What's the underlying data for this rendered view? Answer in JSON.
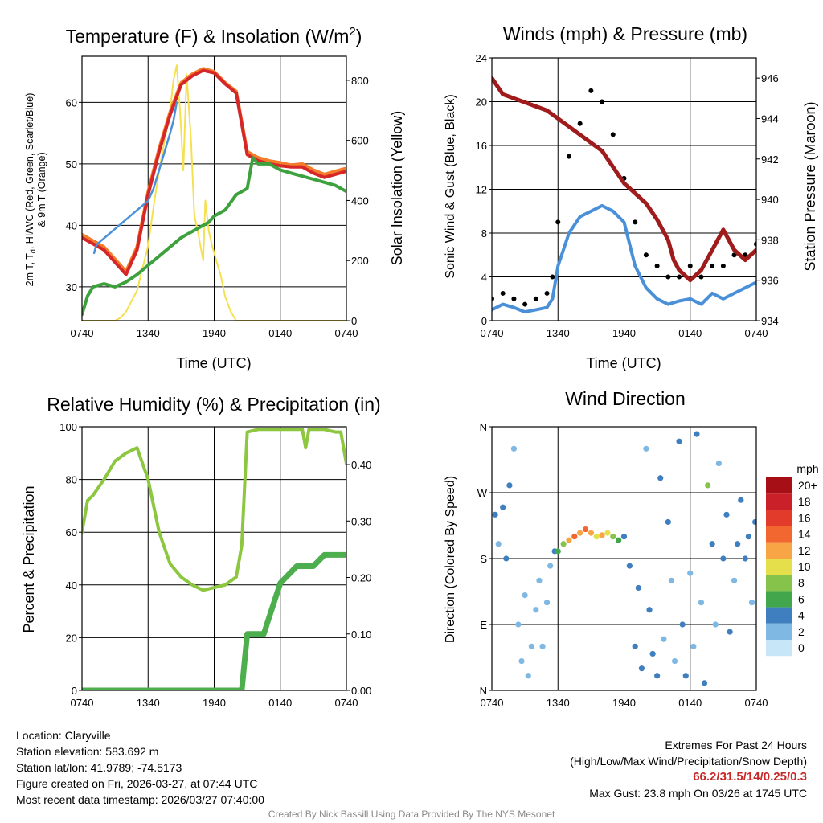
{
  "chart_data": [
    {
      "type": "line",
      "title": "Temperature (F) & Insolation (W/m²)",
      "xlabel": "Time (UTC)",
      "ylabel": "2m T, Td, HI/WC (Red, Green, Scarlet/Blue) & 9m T (Orange)",
      "ylabel_line1": "2m T, T",
      "ylabel_sub": "d",
      "ylabel_line1b": ", HI/WC (Red, Green, Scarlet/Blue)",
      "ylabel_line2": "& 9m T (Orange)",
      "y2label": "Solar Insolation (Yellow)",
      "x_ticks": [
        "0740",
        "1340",
        "1940",
        "0140",
        "0740"
      ],
      "x_hours": [
        0,
        24
      ],
      "ylim": [
        24.5,
        67.5
      ],
      "y_ticks": [
        30,
        40,
        50,
        60
      ],
      "y2lim": [
        0,
        880
      ],
      "y2_ticks": [
        0,
        200,
        400,
        600,
        800
      ],
      "series": [
        {
          "name": "9m T",
          "color": "#f47c2a",
          "x": [
            0,
            1,
            2,
            3,
            4,
            5,
            6,
            7,
            8,
            9,
            10,
            11,
            12,
            13,
            14,
            15,
            16,
            17,
            18,
            19,
            20,
            21,
            22,
            23,
            24
          ],
          "values": [
            38.5,
            37.5,
            36.5,
            34.5,
            32.5,
            36.5,
            45.5,
            52.5,
            58.5,
            63.2,
            64.6,
            65.5,
            65.0,
            63.2,
            61.8,
            52.0,
            51.0,
            50.5,
            50.2,
            49.8,
            50.0,
            49.0,
            48.3,
            48.8,
            49.3
          ]
        },
        {
          "name": "2m T",
          "color": "#d62728",
          "x": [
            0,
            1,
            2,
            3,
            4,
            5,
            6,
            7,
            8,
            9,
            10,
            11,
            12,
            13,
            14,
            15,
            16,
            17,
            18,
            19,
            20,
            21,
            22,
            23,
            24
          ],
          "values": [
            38.0,
            37.0,
            36.0,
            34.0,
            32.0,
            36.0,
            45.0,
            52.0,
            58.0,
            62.9,
            64.3,
            65.2,
            64.8,
            63.0,
            61.5,
            51.5,
            50.5,
            50.0,
            49.7,
            49.5,
            49.5,
            48.5,
            47.8,
            48.3,
            48.8
          ]
        },
        {
          "name": "HI/WC",
          "color": "#4a90d9",
          "x": [
            1.1,
            1.25,
            1.4,
            6,
            6.5,
            7,
            7.5,
            8,
            8.3,
            8.6
          ],
          "values": [
            35.5,
            36.5,
            37,
            44,
            46,
            49,
            52,
            55,
            57,
            60
          ]
        },
        {
          "name": "Td",
          "color": "#3da13d",
          "x": [
            0,
            0.5,
            1,
            2,
            3,
            4,
            5,
            6,
            7,
            8,
            9,
            9.5,
            10,
            11,
            11.5,
            12,
            13,
            14,
            15,
            15.5,
            16,
            17,
            18,
            19,
            20,
            21,
            22,
            23,
            24
          ],
          "values": [
            25.5,
            28.5,
            30.0,
            30.5,
            30.0,
            30.8,
            32.0,
            33.5,
            35.0,
            36.5,
            38.0,
            38.5,
            39.0,
            40.0,
            40.5,
            41.5,
            42.5,
            45.0,
            46.0,
            51.0,
            50.0,
            50.0,
            49.0,
            48.5,
            48.0,
            47.5,
            47.0,
            46.5,
            45.5
          ]
        },
        {
          "name": "Solar Insolation",
          "axis": "y2",
          "color": "#f5e050",
          "x": [
            0,
            3,
            3.5,
            4,
            5,
            6,
            6.5,
            7,
            8,
            8.3,
            8.6,
            8.9,
            9.2,
            9.5,
            9.9,
            10.2,
            10.5,
            11,
            11.2,
            11.5,
            11.8,
            12.2,
            12.6,
            13,
            13.5,
            14,
            24
          ],
          "values": [
            0,
            0,
            10,
            30,
            100,
            250,
            380,
            500,
            700,
            800,
            850,
            700,
            500,
            820,
            600,
            350,
            300,
            200,
            400,
            300,
            250,
            200,
            150,
            80,
            30,
            0,
            0
          ]
        }
      ]
    },
    {
      "type": "line",
      "title": "Winds (mph) & Pressure (mb)",
      "xlabel": "Time (UTC)",
      "ylabel": "Sonic Wind & Gust (Blue, Black)",
      "y2label": "Station Pressure (Maroon)",
      "x_ticks": [
        "0740",
        "1340",
        "1940",
        "0140",
        "0740"
      ],
      "x_hours": [
        0,
        24
      ],
      "ylim": [
        0,
        24
      ],
      "y_ticks": [
        0,
        4,
        8,
        12,
        16,
        20,
        24
      ],
      "y2lim": [
        934,
        947
      ],
      "y2_ticks": [
        934,
        936,
        938,
        940,
        942,
        944,
        946
      ],
      "series": [
        {
          "name": "Sonic Wind",
          "color": "#4a90d9",
          "x": [
            0,
            1,
            2,
            3,
            4,
            5,
            5.5,
            6,
            7,
            8,
            9,
            10,
            11,
            12,
            13,
            14,
            15,
            16,
            17,
            18,
            19,
            20,
            21,
            22,
            23,
            24
          ],
          "values": [
            1.0,
            1.5,
            1.2,
            0.8,
            1.0,
            1.2,
            2,
            5,
            8,
            9.5,
            10,
            10.5,
            10,
            9,
            5,
            3,
            2,
            1.5,
            1.8,
            2.0,
            1.5,
            2.5,
            2.0,
            2.5,
            3.0,
            3.5
          ]
        },
        {
          "name": "Gust",
          "color": "#000000",
          "style": "points",
          "x": [
            0,
            1,
            2,
            3,
            4,
            5,
            5.5,
            6,
            7,
            8,
            9,
            10,
            11,
            12,
            13,
            14,
            15,
            16,
            17,
            18,
            19,
            20,
            21,
            22,
            23,
            24
          ],
          "values": [
            2.0,
            2.5,
            2.0,
            1.5,
            2.0,
            2.5,
            4,
            9,
            15,
            18,
            21,
            20,
            17,
            13,
            9,
            6,
            5,
            4,
            4,
            5,
            4,
            5,
            5,
            6,
            6,
            7
          ]
        },
        {
          "name": "Station Pressure",
          "axis": "y2",
          "color": "#a01c1c",
          "x": [
            0,
            1,
            2,
            3,
            4,
            5,
            6,
            7,
            8,
            9,
            10,
            11,
            12,
            13,
            14,
            15,
            16,
            16.5,
            17,
            18,
            19,
            20,
            21,
            22,
            23,
            24
          ],
          "values": [
            946.0,
            945.2,
            945.0,
            944.8,
            944.6,
            944.4,
            944.0,
            943.6,
            943.2,
            942.8,
            942.4,
            941.6,
            940.8,
            940.3,
            939.8,
            939.0,
            938.0,
            937.0,
            936.5,
            936.0,
            936.5,
            937.5,
            938.5,
            937.5,
            937.0,
            937.5
          ]
        }
      ]
    },
    {
      "type": "line",
      "title": "Relative Humidity (%) & Precipitation (in)",
      "xlabel": "",
      "ylabel": "Percent & Precipitation",
      "x_ticks": [
        "0740",
        "1340",
        "1940",
        "0140",
        "0740"
      ],
      "x_hours": [
        0,
        24
      ],
      "ylim": [
        0,
        100
      ],
      "y_ticks": [
        0,
        20,
        40,
        60,
        80,
        100
      ],
      "y2lim": [
        0,
        0.467
      ],
      "y2_ticks": [
        "0.00",
        "0.10",
        "0.20",
        "0.30",
        "0.40"
      ],
      "y2_tick_values": [
        0,
        0.1,
        0.2,
        0.3,
        0.4
      ],
      "series": [
        {
          "name": "Relative Humidity",
          "color": "#8dc63f",
          "x": [
            0,
            0.5,
            1,
            2,
            3,
            4,
            5,
            6,
            7,
            8,
            9,
            10,
            11,
            12,
            13,
            14,
            14.5,
            15,
            16,
            17,
            18,
            19,
            20,
            20.3,
            20.6,
            21,
            22,
            23,
            23.5,
            24
          ],
          "values": [
            60,
            72,
            74,
            80,
            87,
            90,
            92,
            80,
            60,
            48,
            43,
            40,
            38,
            39,
            40,
            43,
            55,
            98,
            99,
            99,
            99,
            99,
            99,
            92,
            99,
            99,
            99,
            98,
            98,
            86
          ]
        },
        {
          "name": "Precipitation",
          "axis": "y2",
          "color": "#4cae4c",
          "x": [
            0,
            14.5,
            15,
            15.5,
            16,
            16.5,
            17,
            17.5,
            18,
            18.5,
            19,
            19.5,
            20,
            21,
            22,
            23,
            24
          ],
          "values": [
            0,
            0,
            0.1,
            0.1,
            0.1,
            0.1,
            0.13,
            0.16,
            0.19,
            0.2,
            0.21,
            0.22,
            0.22,
            0.22,
            0.24,
            0.24,
            0.24
          ]
        }
      ]
    },
    {
      "type": "scatter",
      "title": "Wind Direction",
      "ylabel": "Direction (Colored By Speed)",
      "x_ticks": [
        "0740",
        "1340",
        "1940",
        "0140",
        "0740"
      ],
      "x_hours": [
        0,
        24
      ],
      "ylim": [
        0,
        360
      ],
      "y_ticks": [
        "N",
        "E",
        "S",
        "W",
        "N"
      ],
      "y_tick_values": [
        0,
        90,
        180,
        270,
        360
      ],
      "legend": {
        "title": "mph",
        "labels": [
          "20+",
          "18",
          "16",
          "14",
          "12",
          "10",
          "8",
          "6",
          "4",
          "2",
          "0"
        ],
        "colors": [
          "#a50f15",
          "#c9202a",
          "#e23b2c",
          "#f26630",
          "#f8a546",
          "#e6df4c",
          "#86c34a",
          "#41a64c",
          "#3f7fc0",
          "#7fb8e3",
          "#c7e6f7"
        ]
      },
      "points": [
        {
          "t": 0.3,
          "d": 240,
          "s": 3
        },
        {
          "t": 0.6,
          "d": 200,
          "s": 2
        },
        {
          "t": 1.0,
          "d": 250,
          "s": 4
        },
        {
          "t": 1.3,
          "d": 180,
          "s": 3
        },
        {
          "t": 1.6,
          "d": 280,
          "s": 3
        },
        {
          "t": 2.0,
          "d": 330,
          "s": 1
        },
        {
          "t": 2.4,
          "d": 90,
          "s": 2
        },
        {
          "t": 2.7,
          "d": 40,
          "s": 2
        },
        {
          "t": 3.0,
          "d": 130,
          "s": 1
        },
        {
          "t": 3.3,
          "d": 20,
          "s": 1
        },
        {
          "t": 3.6,
          "d": 60,
          "s": 2
        },
        {
          "t": 4.0,
          "d": 110,
          "s": 2
        },
        {
          "t": 4.3,
          "d": 150,
          "s": 1
        },
        {
          "t": 4.6,
          "d": 60,
          "s": 1
        },
        {
          "t": 5.0,
          "d": 120,
          "s": 1
        },
        {
          "t": 5.3,
          "d": 170,
          "s": 2
        },
        {
          "t": 5.7,
          "d": 190,
          "s": 4
        },
        {
          "t": 6.0,
          "d": 190,
          "s": 6
        },
        {
          "t": 6.5,
          "d": 200,
          "s": 8
        },
        {
          "t": 7.0,
          "d": 205,
          "s": 12
        },
        {
          "t": 7.5,
          "d": 210,
          "s": 13
        },
        {
          "t": 8.0,
          "d": 215,
          "s": 11
        },
        {
          "t": 8.5,
          "d": 220,
          "s": 14
        },
        {
          "t": 9.0,
          "d": 215,
          "s": 12
        },
        {
          "t": 9.5,
          "d": 210,
          "s": 10
        },
        {
          "t": 10.0,
          "d": 212,
          "s": 11
        },
        {
          "t": 10.5,
          "d": 215,
          "s": 9
        },
        {
          "t": 11.0,
          "d": 210,
          "s": 7
        },
        {
          "t": 11.5,
          "d": 205,
          "s": 6
        },
        {
          "t": 12.0,
          "d": 210,
          "s": 4
        },
        {
          "t": 12.5,
          "d": 170,
          "s": 4
        },
        {
          "t": 13.0,
          "d": 60,
          "s": 3
        },
        {
          "t": 13.3,
          "d": 140,
          "s": 4
        },
        {
          "t": 13.6,
          "d": 30,
          "s": 4
        },
        {
          "t": 14.0,
          "d": 330,
          "s": 2
        },
        {
          "t": 14.3,
          "d": 110,
          "s": 3
        },
        {
          "t": 14.6,
          "d": 50,
          "s": 4
        },
        {
          "t": 15.0,
          "d": 20,
          "s": 3
        },
        {
          "t": 15.3,
          "d": 290,
          "s": 3
        },
        {
          "t": 15.6,
          "d": 70,
          "s": 2
        },
        {
          "t": 16.0,
          "d": 230,
          "s": 3
        },
        {
          "t": 16.3,
          "d": 150,
          "s": 2
        },
        {
          "t": 16.6,
          "d": 40,
          "s": 2
        },
        {
          "t": 17.0,
          "d": 340,
          "s": 4
        },
        {
          "t": 17.3,
          "d": 90,
          "s": 3
        },
        {
          "t": 17.6,
          "d": 20,
          "s": 4
        },
        {
          "t": 18.0,
          "d": 160,
          "s": 1
        },
        {
          "t": 18.3,
          "d": 60,
          "s": 2
        },
        {
          "t": 18.6,
          "d": 350,
          "s": 4
        },
        {
          "t": 19.0,
          "d": 120,
          "s": 2
        },
        {
          "t": 19.3,
          "d": 10,
          "s": 3
        },
        {
          "t": 19.6,
          "d": 280,
          "s": 7
        },
        {
          "t": 20.0,
          "d": 200,
          "s": 3
        },
        {
          "t": 20.3,
          "d": 90,
          "s": 2
        },
        {
          "t": 20.6,
          "d": 310,
          "s": 1
        },
        {
          "t": 21.0,
          "d": 180,
          "s": 4
        },
        {
          "t": 21.3,
          "d": 240,
          "s": 3
        },
        {
          "t": 21.6,
          "d": 80,
          "s": 3
        },
        {
          "t": 22.0,
          "d": 150,
          "s": 1
        },
        {
          "t": 22.3,
          "d": 200,
          "s": 3
        },
        {
          "t": 22.6,
          "d": 260,
          "s": 4
        },
        {
          "t": 23.0,
          "d": 180,
          "s": 4
        },
        {
          "t": 23.3,
          "d": 210,
          "s": 4
        },
        {
          "t": 23.6,
          "d": 120,
          "s": 2
        },
        {
          "t": 23.9,
          "d": 230,
          "s": 4
        }
      ]
    }
  ],
  "info": {
    "location": "Location: Claryville",
    "elevation": "Station elevation: 583.692 m",
    "latlon": "Station lat/lon: 41.9789; -74.5173",
    "created": "Figure created on Fri, 2026-03-27, at 07:44 UTC",
    "recent": "Most recent data timestamp: 2026/03/27 07:40:00"
  },
  "extremes": {
    "title": "Extremes For Past 24 Hours",
    "subtitle": "(High/Low/Max Wind/Precipitation/Snow Depth)",
    "values": "66.2/31.5/14/0.25/0.3",
    "gust": "Max Gust: 23.8 mph On 03/26 at 1745 UTC"
  },
  "credit": "Created By Nick Bassill Using Data Provided By The NYS Mesonet"
}
